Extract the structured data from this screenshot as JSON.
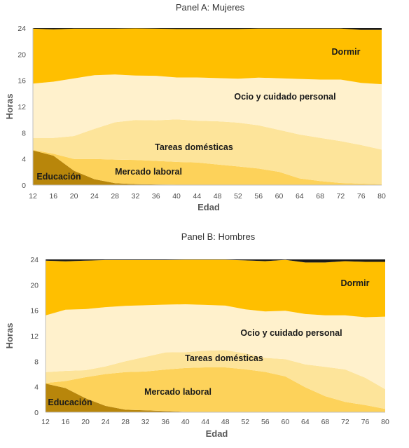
{
  "chart_data": [
    {
      "type": "area",
      "title": "Panel A: Mujeres",
      "xlabel": "Edad",
      "ylabel": "Horas",
      "xlim": [
        12,
        80
      ],
      "ylim": [
        0,
        24
      ],
      "x_ticks": [
        "12",
        "16",
        "20",
        "24",
        "28",
        "32",
        "36",
        "40",
        "44",
        "48",
        "52",
        "56",
        "60",
        "64",
        "68",
        "72",
        "76",
        "80"
      ],
      "y_ticks": [
        "0",
        "4",
        "8",
        "12",
        "16",
        "20",
        "24"
      ],
      "x": [
        12,
        16,
        20,
        24,
        28,
        32,
        36,
        40,
        44,
        48,
        52,
        56,
        60,
        64,
        68,
        72,
        76,
        80
      ],
      "series": [
        {
          "name": "Educación",
          "color": "#b8860b",
          "values": [
            5.3,
            4.5,
            2.2,
            0.9,
            0.3,
            0.15,
            0.1,
            0.05,
            0.05,
            0.05,
            0.05,
            0.03,
            0.03,
            0.02,
            0.02,
            0.02,
            0.02,
            0.02
          ]
        },
        {
          "name": "Mercado laboral",
          "color": "#fdd25a",
          "values": [
            0.1,
            0.3,
            1.8,
            3.1,
            3.6,
            3.7,
            3.6,
            3.5,
            3.4,
            3.1,
            2.8,
            2.5,
            2.0,
            1.0,
            0.6,
            0.3,
            0.2,
            0.1
          ]
        },
        {
          "name": "Tareas domésticas",
          "color": "#fde49a",
          "values": [
            1.8,
            2.4,
            3.5,
            4.6,
            5.7,
            6.1,
            6.2,
            6.5,
            6.4,
            6.6,
            6.7,
            6.6,
            6.4,
            6.7,
            6.6,
            6.4,
            5.9,
            5.3
          ]
        },
        {
          "name": "Ocio y cuidado personal",
          "color": "#fff1cc",
          "values": [
            8.3,
            8.6,
            8.8,
            8.2,
            7.3,
            6.8,
            6.8,
            6.4,
            6.6,
            6.6,
            6.7,
            7.3,
            7.9,
            8.5,
            8.9,
            9.4,
            9.5,
            10.0
          ]
        },
        {
          "name": "Dormir",
          "color": "#ffbf00",
          "values": [
            8.4,
            8.0,
            7.6,
            7.1,
            7.0,
            7.2,
            7.2,
            7.4,
            7.4,
            7.5,
            7.6,
            7.5,
            7.6,
            7.7,
            7.8,
            7.8,
            8.1,
            8.3
          ]
        },
        {
          "name": "",
          "color": "#1a1a1a",
          "values": [
            0.1,
            0.2,
            0.1,
            0.1,
            0.1,
            0.05,
            0.1,
            0.15,
            0.15,
            0.15,
            0.15,
            0.07,
            0.07,
            0.08,
            0.08,
            0.08,
            0.28,
            0.28
          ]
        }
      ]
    },
    {
      "type": "area",
      "title": "Panel B: Hombres",
      "xlabel": "Edad",
      "ylabel": "Horas",
      "xlim": [
        12,
        80
      ],
      "ylim": [
        0,
        24
      ],
      "x_ticks": [
        "12",
        "16",
        "20",
        "24",
        "28",
        "32",
        "36",
        "40",
        "44",
        "48",
        "52",
        "56",
        "60",
        "64",
        "68",
        "72",
        "76",
        "80"
      ],
      "y_ticks": [
        "0",
        "4",
        "8",
        "12",
        "16",
        "20",
        "24"
      ],
      "x": [
        12,
        16,
        20,
        24,
        28,
        32,
        36,
        40,
        44,
        48,
        52,
        56,
        60,
        64,
        68,
        72,
        76,
        80
      ],
      "series": [
        {
          "name": "Educación",
          "color": "#b8860b",
          "values": [
            4.5,
            3.8,
            2.2,
            1.0,
            0.4,
            0.3,
            0.2,
            0.05,
            0.05,
            0.05,
            0.05,
            0.03,
            0.03,
            0.02,
            0.02,
            0.02,
            0.02,
            0.02
          ]
        },
        {
          "name": "Mercado laboral",
          "color": "#fdd25a",
          "values": [
            0.1,
            1.1,
            3.3,
            5.0,
            5.9,
            6.1,
            6.5,
            6.9,
            7.0,
            7.0,
            6.7,
            6.3,
            5.6,
            3.9,
            2.5,
            1.6,
            1.1,
            0.5
          ]
        },
        {
          "name": "Tareas domésticas",
          "color": "#fde49a",
          "values": [
            1.7,
            1.6,
            1.1,
            1.2,
            1.7,
            2.3,
            2.7,
            2.5,
            2.6,
            2.7,
            2.5,
            2.2,
            2.7,
            3.6,
            4.6,
            5.1,
            4.3,
            3.1
          ]
        },
        {
          "name": "Ocio y cuidado personal",
          "color": "#fff1cc",
          "values": [
            8.9,
            9.6,
            9.6,
            9.3,
            8.7,
            8.1,
            7.5,
            7.5,
            7.2,
            7.0,
            6.9,
            7.3,
            7.6,
            7.9,
            8.1,
            8.5,
            9.5,
            11.4
          ]
        },
        {
          "name": "Dormir",
          "color": "#ffbf00",
          "values": [
            8.6,
            7.6,
            7.6,
            7.4,
            7.2,
            7.1,
            7.0,
            7.0,
            7.1,
            7.2,
            7.7,
            7.9,
            8.0,
            8.1,
            8.3,
            8.5,
            8.7,
            8.6
          ]
        },
        {
          "name": "",
          "color": "#1a1a1a",
          "values": [
            0.2,
            0.3,
            0.2,
            0.1,
            0.1,
            0.1,
            0.1,
            0.05,
            0.05,
            0.05,
            0.15,
            0.27,
            0.07,
            0.48,
            0.48,
            0.28,
            0.38,
            0.38
          ]
        }
      ]
    }
  ]
}
